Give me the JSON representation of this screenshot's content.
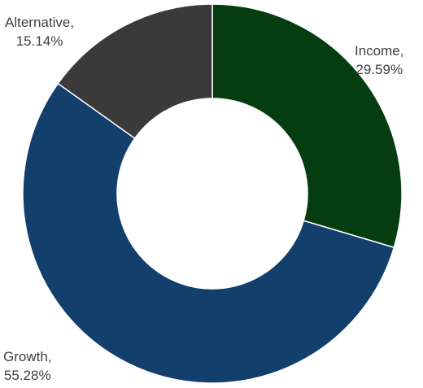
{
  "chart_data": {
    "type": "pie",
    "variant": "donut",
    "title": "",
    "slices": [
      {
        "category": "Income",
        "value": 29.59,
        "label_line1": "Income,",
        "label_line2": "29.59%",
        "color": "#053D10"
      },
      {
        "category": "Growth",
        "value": 55.28,
        "label_line1": "Growth,",
        "label_line2": "55.28%",
        "color": "#133F6C"
      },
      {
        "category": "Alternative",
        "value": 15.14,
        "label_line1": "Alternative,",
        "label_line2": "15.14%",
        "color": "#3A3A3A"
      }
    ],
    "start_angle_deg": 0,
    "direction": "clockwise",
    "legend": "none"
  }
}
